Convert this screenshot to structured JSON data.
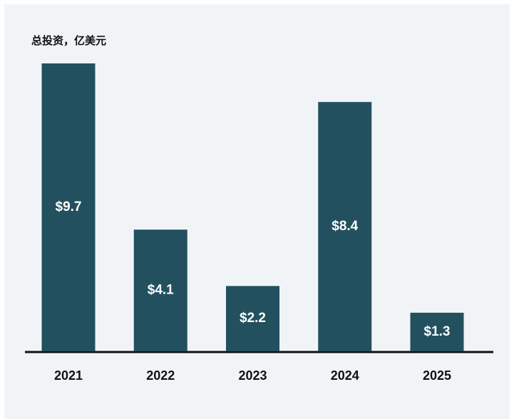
{
  "chart_data": {
    "type": "bar",
    "title": "总投资，亿美元",
    "categories": [
      "2021",
      "2022",
      "2023",
      "2024",
      "2025"
    ],
    "values": [
      9.7,
      4.1,
      2.2,
      8.4,
      1.3
    ],
    "value_labels": [
      "$9.7",
      "$4.1",
      "$2.2",
      "$8.4",
      "$1.3"
    ],
    "color": "#23505f"
  }
}
